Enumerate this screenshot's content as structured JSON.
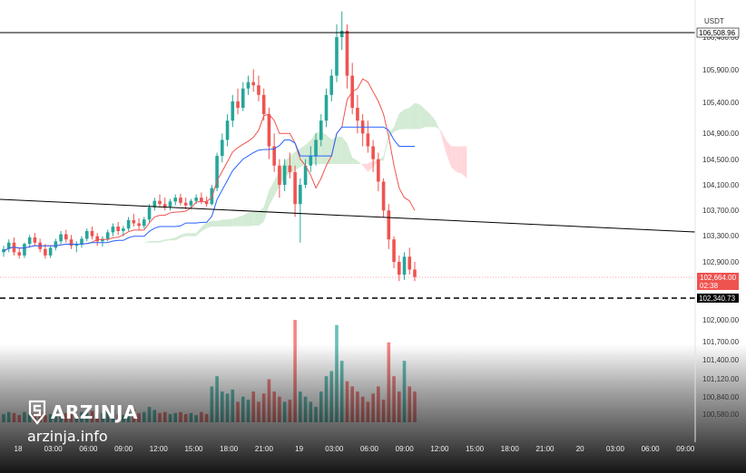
{
  "brand": {
    "name": "ARZINJA",
    "url": "arzinja.info",
    "logo_icon": "s-shield-icon"
  },
  "chart_data": {
    "type": "candlestick",
    "currency_label": "USDT",
    "y_ticks": [
      "106,400.00",
      "105,900.00",
      "105,400.00",
      "104,900.00",
      "104,500.00",
      "104,100.00",
      "103,700.00",
      "103,300.00",
      "102,900.00",
      "102,000.00",
      "101,700.00",
      "101,400.00",
      "101,120.00",
      "100,840.00",
      "100,580.00"
    ],
    "y_tick_values": [
      106400,
      105900,
      105400,
      104900,
      104500,
      104100,
      103700,
      103300,
      102900,
      102000,
      101700,
      101400,
      101120,
      100840,
      100580
    ],
    "x_ticks": [
      "18",
      "03:00",
      "06:00",
      "09:00",
      "12:00",
      "15:00",
      "18:00",
      "21:00",
      "19",
      "03:00",
      "06:00",
      "09:00",
      "12:00",
      "15:00",
      "18:00",
      "21:00",
      "20",
      "03:00",
      "06:00",
      "09:00"
    ],
    "badges": {
      "resistance": "106,508.96",
      "last_price": "102,664.00",
      "countdown": "02:38",
      "support": "102,340.73"
    },
    "horizontal_levels": [
      {
        "value": 106508.96,
        "style": "solid"
      },
      {
        "value": 102340.73,
        "style": "dashed"
      }
    ],
    "colors": {
      "up": "#26a69a",
      "down": "#ef5350",
      "tenkan": "#ef5350",
      "kijun": "#2962ff",
      "cloud_bull": "#c8e6c9",
      "cloud_bear": "#ffcdd2"
    },
    "candles": [
      [
        103050,
        103150,
        102980,
        103100
      ],
      [
        103100,
        103250,
        103050,
        103200
      ],
      [
        103200,
        103280,
        103000,
        103050
      ],
      [
        103050,
        103120,
        102950,
        103000
      ],
      [
        103000,
        103200,
        102960,
        103180
      ],
      [
        103180,
        103320,
        103120,
        103280
      ],
      [
        103280,
        103350,
        103150,
        103200
      ],
      [
        103200,
        103260,
        103050,
        103100
      ],
      [
        103100,
        103180,
        102950,
        103000
      ],
      [
        103000,
        103150,
        102960,
        103120
      ],
      [
        103120,
        103260,
        103080,
        103220
      ],
      [
        103220,
        103380,
        103180,
        103330
      ],
      [
        103330,
        103400,
        103200,
        103250
      ],
      [
        103250,
        103320,
        103100,
        103150
      ],
      [
        103150,
        103220,
        103050,
        103180
      ],
      [
        103180,
        103300,
        103120,
        103260
      ],
      [
        103260,
        103420,
        103220,
        103380
      ],
      [
        103380,
        103450,
        103250,
        103300
      ],
      [
        103300,
        103350,
        103150,
        103220
      ],
      [
        103220,
        103300,
        103140,
        103260
      ],
      [
        103260,
        103400,
        103220,
        103360
      ],
      [
        103360,
        103500,
        103300,
        103450
      ],
      [
        103450,
        103520,
        103320,
        103380
      ],
      [
        103380,
        103460,
        103300,
        103420
      ],
      [
        103420,
        103600,
        103380,
        103550
      ],
      [
        103550,
        103650,
        103450,
        103500
      ],
      [
        103500,
        103580,
        103400,
        103460
      ],
      [
        103460,
        103600,
        103420,
        103560
      ],
      [
        103560,
        103800,
        103520,
        103750
      ],
      [
        103750,
        103900,
        103700,
        103850
      ],
      [
        103850,
        103950,
        103750,
        103800
      ],
      [
        103800,
        103900,
        103700,
        103760
      ],
      [
        103760,
        103880,
        103700,
        103840
      ],
      [
        103840,
        103950,
        103780,
        103900
      ],
      [
        103900,
        103960,
        103780,
        103820
      ],
      [
        103820,
        103900,
        103720,
        103780
      ],
      [
        103780,
        103880,
        103720,
        103850
      ],
      [
        103850,
        103950,
        103800,
        103900
      ],
      [
        103900,
        103980,
        103800,
        103840
      ],
      [
        103840,
        103920,
        103760,
        103800
      ],
      [
        103800,
        104100,
        103780,
        104050
      ],
      [
        104050,
        104600,
        104000,
        104550
      ],
      [
        104550,
        104900,
        104450,
        104800
      ],
      [
        104800,
        105200,
        104700,
        105100
      ],
      [
        105100,
        105500,
        105000,
        105400
      ],
      [
        105400,
        105600,
        105200,
        105300
      ],
      [
        105300,
        105700,
        105250,
        105600
      ],
      [
        105600,
        105800,
        105500,
        105700
      ],
      [
        105700,
        105900,
        105550,
        105650
      ],
      [
        105650,
        105800,
        105400,
        105500
      ],
      [
        105500,
        105600,
        105100,
        105200
      ],
      [
        105200,
        105300,
        104500,
        104700
      ],
      [
        104700,
        104900,
        104300,
        104400
      ],
      [
        104400,
        104500,
        103900,
        104100
      ],
      [
        104100,
        104500,
        104000,
        104400
      ],
      [
        104400,
        104600,
        104200,
        104300
      ],
      [
        104300,
        104400,
        103600,
        103800
      ],
      [
        103800,
        104200,
        103200,
        104100
      ],
      [
        104100,
        104500,
        104050,
        104400
      ],
      [
        104400,
        104700,
        104300,
        104550
      ],
      [
        104550,
        104900,
        104400,
        104800
      ],
      [
        104800,
        105200,
        104700,
        105100
      ],
      [
        105100,
        105600,
        105000,
        105500
      ],
      [
        105500,
        105900,
        105400,
        105800
      ],
      [
        105800,
        106600,
        105700,
        106400
      ],
      [
        106400,
        106800,
        106200,
        106500
      ],
      [
        106500,
        106600,
        105600,
        105800
      ],
      [
        105800,
        106000,
        105200,
        105300
      ],
      [
        105300,
        105500,
        104900,
        105100
      ],
      [
        105100,
        105200,
        104700,
        104900
      ],
      [
        104900,
        105100,
        104600,
        104700
      ],
      [
        104700,
        104800,
        104300,
        104500
      ],
      [
        104500,
        104600,
        104000,
        104150
      ],
      [
        104150,
        104200,
        103600,
        103700
      ],
      [
        103700,
        103800,
        103100,
        103250
      ],
      [
        103250,
        103300,
        102800,
        102900
      ],
      [
        102900,
        103000,
        102600,
        102700
      ],
      [
        102700,
        103050,
        102620,
        102980
      ],
      [
        102980,
        103120,
        102700,
        102780
      ],
      [
        102780,
        102900,
        102600,
        102664
      ]
    ],
    "volumes": [
      0.08,
      0.1,
      0.09,
      0.07,
      0.1,
      0.08,
      0.09,
      0.11,
      0.07,
      0.08,
      0.12,
      0.1,
      0.09,
      0.08,
      0.07,
      0.1,
      0.09,
      0.11,
      0.08,
      0.09,
      0.1,
      0.12,
      0.08,
      0.07,
      0.1,
      0.13,
      0.09,
      0.1,
      0.15,
      0.12,
      0.09,
      0.1,
      0.08,
      0.09,
      0.1,
      0.08,
      0.09,
      0.07,
      0.1,
      0.08,
      0.35,
      0.45,
      0.3,
      0.28,
      0.32,
      0.2,
      0.25,
      0.22,
      0.3,
      0.2,
      0.28,
      0.42,
      0.3,
      0.25,
      0.2,
      0.22,
      1.0,
      0.3,
      0.25,
      0.2,
      0.15,
      0.3,
      0.45,
      0.5,
      0.95,
      0.6,
      0.4,
      0.35,
      0.3,
      0.25,
      0.2,
      0.28,
      0.35,
      0.22,
      0.78,
      0.45,
      0.3,
      0.6,
      0.35,
      0.3
    ]
  }
}
